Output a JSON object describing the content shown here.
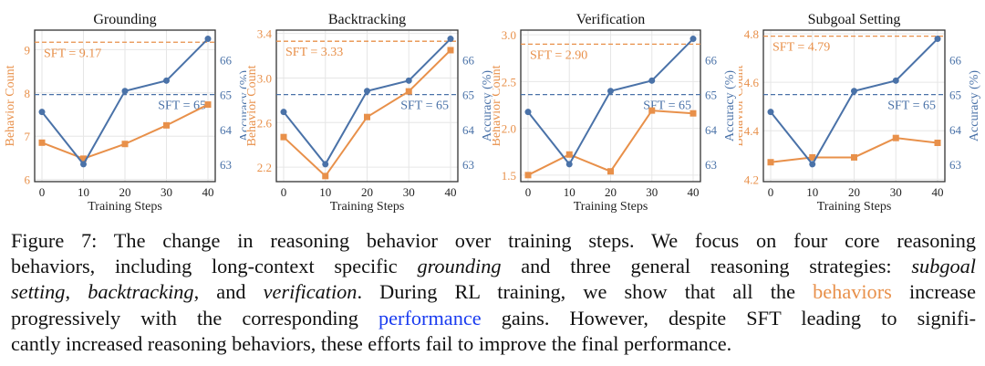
{
  "colors": {
    "behavior": "#E8904A",
    "accuracy": "#4A72A8"
  },
  "chart_data": [
    {
      "type": "line",
      "title": "Grounding",
      "xlabel": "Training Steps",
      "ylabel": "Behavior Count",
      "y2label": "Accuracy (%)",
      "x": [
        0,
        10,
        20,
        30,
        40
      ],
      "ylim": [
        5.95,
        9.45
      ],
      "yticks": [
        6,
        7,
        8,
        9
      ],
      "y2lim": [
        62.5,
        66.85
      ],
      "y2ticks": [
        63,
        64,
        65,
        66
      ],
      "grid": true,
      "series": [
        {
          "axis": "left",
          "values": [
            6.85,
            6.48,
            6.82,
            7.25,
            7.73
          ]
        },
        {
          "axis": "right",
          "values": [
            64.5,
            63.0,
            65.1,
            65.4,
            66.6
          ]
        }
      ],
      "reference_lines": [
        {
          "axis": "left",
          "value": 9.17,
          "label": "SFT = 9.17"
        },
        {
          "axis": "right",
          "value": 65,
          "label": "SFT = 65"
        }
      ]
    },
    {
      "type": "line",
      "title": "Backtracking",
      "xlabel": "Training Steps",
      "ylabel": "Behavior Count",
      "y2label": "Accuracy (%)",
      "x": [
        0,
        10,
        20,
        30,
        40
      ],
      "ylim": [
        2.07,
        3.43
      ],
      "yticks": [
        2.2,
        2.6,
        3.0,
        3.4
      ],
      "y2lim": [
        62.5,
        66.85
      ],
      "y2ticks": [
        63,
        64,
        65,
        66
      ],
      "grid": true,
      "series": [
        {
          "axis": "left",
          "values": [
            2.47,
            2.12,
            2.65,
            2.88,
            3.25
          ]
        },
        {
          "axis": "right",
          "values": [
            64.5,
            63.0,
            65.1,
            65.4,
            66.6
          ]
        }
      ],
      "reference_lines": [
        {
          "axis": "left",
          "value": 3.33,
          "label": "SFT = 3.33"
        },
        {
          "axis": "right",
          "value": 65,
          "label": "SFT = 65"
        }
      ]
    },
    {
      "type": "line",
      "title": "Verification",
      "xlabel": "Training Steps",
      "ylabel": "Behavior Count",
      "y2label": "Accuracy (%)",
      "x": [
        0,
        10,
        20,
        30,
        40
      ],
      "ylim": [
        1.43,
        3.05
      ],
      "yticks": [
        1.5,
        2.0,
        2.5,
        3.0
      ],
      "y2lim": [
        62.5,
        66.85
      ],
      "y2ticks": [
        63,
        64,
        65,
        66
      ],
      "grid": true,
      "series": [
        {
          "axis": "left",
          "values": [
            1.5,
            1.72,
            1.54,
            2.19,
            2.16
          ]
        },
        {
          "axis": "right",
          "values": [
            64.5,
            63.0,
            65.1,
            65.4,
            66.6
          ]
        }
      ],
      "reference_lines": [
        {
          "axis": "left",
          "value": 2.9,
          "label": "SFT = 2.90"
        },
        {
          "axis": "right",
          "value": 65,
          "label": "SFT = 65"
        }
      ]
    },
    {
      "type": "line",
      "title": "Subgoal Setting",
      "xlabel": "Training Steps",
      "ylabel": "Behavior Count",
      "y2label": "Accuracy (%)",
      "x": [
        0,
        10,
        20,
        30,
        40
      ],
      "ylim": [
        4.19,
        4.815
      ],
      "yticks": [
        4.2,
        4.4,
        4.6,
        4.8
      ],
      "y2lim": [
        62.5,
        66.85
      ],
      "y2ticks": [
        63,
        64,
        65,
        66
      ],
      "grid": true,
      "series": [
        {
          "axis": "left",
          "values": [
            4.27,
            4.29,
            4.29,
            4.37,
            4.35
          ]
        },
        {
          "axis": "right",
          "values": [
            64.5,
            63.0,
            65.1,
            65.4,
            66.6
          ]
        }
      ],
      "reference_lines": [
        {
          "axis": "left",
          "value": 4.79,
          "label": "SFT = 4.79"
        },
        {
          "axis": "right",
          "value": 65,
          "label": "SFT = 65"
        }
      ]
    }
  ],
  "caption": [
    [
      {
        "t": "Figure 7: The change in reasoning behavior over training steps. We focus on four core reasoning"
      }
    ],
    [
      {
        "t": "behaviors, including long-context specific "
      },
      {
        "t": "grounding",
        "s": "it"
      },
      {
        "t": " and three general reasoning strategies: "
      },
      {
        "t": "subgoal",
        "s": "it"
      }
    ],
    [
      {
        "t": "setting",
        "s": "it"
      },
      {
        "t": ", "
      },
      {
        "t": "backtracking",
        "s": "it"
      },
      {
        "t": ", and "
      },
      {
        "t": "verification",
        "s": "it"
      },
      {
        "t": ". During RL training, we show that all the "
      },
      {
        "t": "behaviors",
        "s": "or"
      },
      {
        "t": " increase"
      }
    ],
    [
      {
        "t": "progressively with the corresponding "
      },
      {
        "t": "performance",
        "s": "bl"
      },
      {
        "t": " gains. However, despite SFT leading to signifi-"
      }
    ],
    [
      {
        "t": "cantly increased reasoning behaviors, these efforts fail to improve the final performance."
      }
    ]
  ]
}
